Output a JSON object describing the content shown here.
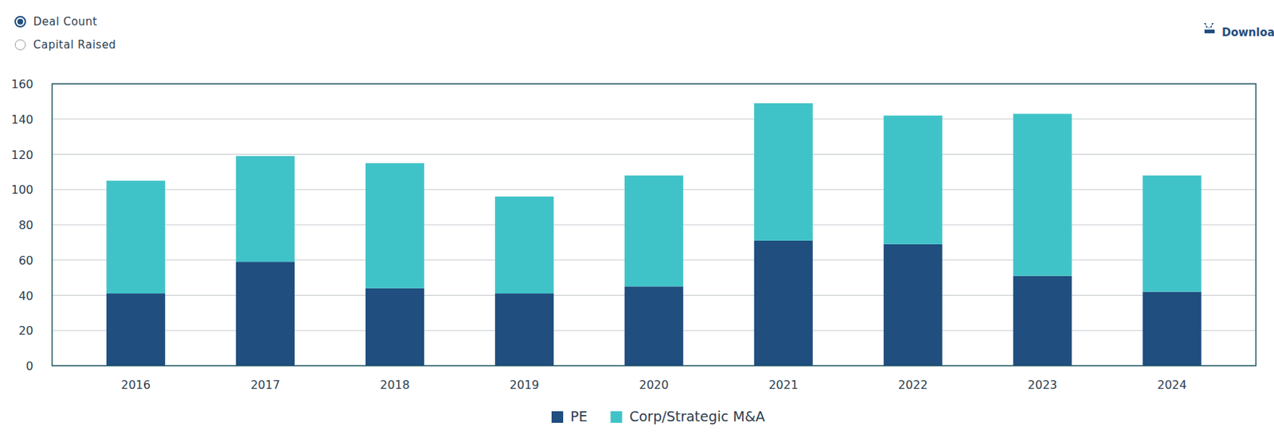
{
  "controls": {
    "options": [
      "Deal Count",
      "Capital Raised"
    ],
    "selected": "Deal Count",
    "download": "Download"
  },
  "chart_data": {
    "type": "bar",
    "stacked": true,
    "grid": true,
    "legend": "bottom",
    "categories": [
      "2016",
      "2017",
      "2018",
      "2019",
      "2020",
      "2021",
      "2022",
      "2023",
      "2024"
    ],
    "series": [
      {
        "name": "PE",
        "color": "#1f4e7f",
        "values": [
          41,
          59,
          44,
          41,
          45,
          71,
          69,
          51,
          42
        ]
      },
      {
        "name": "Corp/Strategic M&A",
        "color": "#40c3c8",
        "values": [
          64,
          60,
          71,
          55,
          63,
          78,
          73,
          92,
          66
        ]
      }
    ],
    "ylim": [
      0,
      160
    ],
    "yticks": [
      0,
      20,
      40,
      60,
      80,
      100,
      120,
      140,
      160
    ]
  }
}
